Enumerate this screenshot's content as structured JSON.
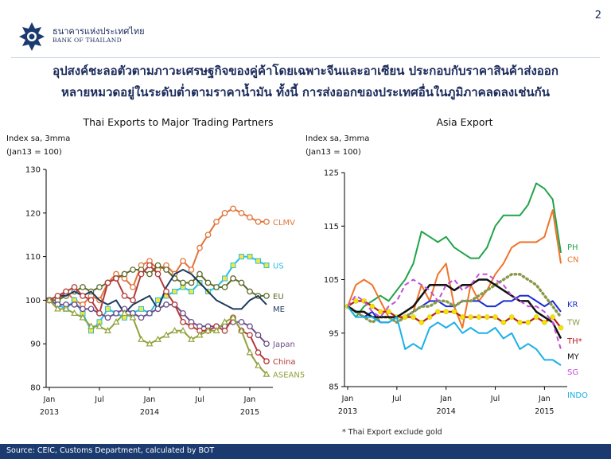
{
  "header": {
    "bank_name_th": "ธนาคารแห่งประเทศไทย",
    "bank_name_en": "BANK OF THAILAND",
    "page_number": "2",
    "headline_line1": "อุปสงค์ชะลอตัวตามภาวะเศรษฐกิจของคู่ค้าโดยเฉพาะจีนและอาเซียน ประกอบกับราคาสินค้าส่งออก",
    "headline_line2": "หลายหมวดอยู่ในระดับต่ำตามราคาน้ำมัน ทั้งนี้ การส่งออกของประเทศอื่นในภูมิภาคลดลงเช่นกัน"
  },
  "footnote": "* Thai Export exclude gold",
  "source": "Source: CEIC, Customs Department, calculated by BOT",
  "colors": {
    "accent": "#1b3a6f"
  },
  "chart_data": [
    {
      "type": "line",
      "title": "Thai Exports to Major Trading Partners",
      "ylabel_line1": "Index sa, 3mma",
      "ylabel_line2": "(Jan13 = 100)",
      "ylim": [
        80,
        130
      ],
      "yticks": [
        80,
        90,
        100,
        110,
        120,
        130
      ],
      "x_ticks": [
        {
          "label": "Jan",
          "sub": "2013",
          "index": 0
        },
        {
          "label": "Jul",
          "sub": "",
          "index": 6
        },
        {
          "label": "Jan",
          "sub": "2014",
          "index": 12
        },
        {
          "label": "Jul",
          "sub": "",
          "index": 18
        },
        {
          "label": "Jan",
          "sub": "2015",
          "index": 24
        }
      ],
      "n_points": 27,
      "grid": false,
      "legend": "line-end labels",
      "series": [
        {
          "name": "CLMV",
          "color": "#e2743a",
          "marker": "circle-hollow",
          "values": [
            100,
            100,
            102,
            100,
            99,
            101,
            100,
            104,
            106,
            105,
            103,
            108,
            109,
            107,
            108,
            106,
            109,
            107,
            112,
            115,
            118,
            120,
            121,
            120,
            119,
            118,
            118
          ]
        },
        {
          "name": "US",
          "color": "#2bbce6",
          "marker": "square-yellow",
          "values": [
            100,
            99,
            98,
            100,
            97,
            93,
            95,
            98,
            97,
            96,
            97,
            98,
            97,
            100,
            101,
            102,
            103,
            102,
            104,
            102,
            103,
            105,
            108,
            110,
            110,
            109,
            108
          ]
        },
        {
          "name": "EU",
          "color": "#5d6a2a",
          "marker": "circle-hollow",
          "values": [
            100,
            100,
            101,
            102,
            103,
            102,
            103,
            104,
            105,
            106,
            107,
            107,
            106,
            108,
            107,
            105,
            104,
            104,
            106,
            104,
            103,
            103,
            105,
            104,
            102,
            101,
            101
          ]
        },
        {
          "name": "ME",
          "color": "#1e3a5c",
          "marker": "none",
          "values": [
            100,
            101,
            101,
            102,
            101,
            102,
            100,
            99,
            100,
            97,
            99,
            100,
            101,
            98,
            103,
            106,
            107,
            106,
            104,
            102,
            100,
            99,
            98,
            98,
            100,
            101,
            99
          ]
        },
        {
          "name": "Japan",
          "color": "#6c4f8a",
          "marker": "circle-hollow",
          "values": [
            100,
            99,
            99,
            99,
            98,
            98,
            97,
            96,
            97,
            98,
            97,
            96,
            97,
            98,
            99,
            99,
            97,
            95,
            94,
            94,
            94,
            94,
            95,
            95,
            94,
            92,
            90
          ]
        },
        {
          "name": "China",
          "color": "#b23a3a",
          "marker": "circle-hollow",
          "values": [
            100,
            101,
            102,
            103,
            101,
            100,
            97,
            104,
            105,
            101,
            100,
            106,
            108,
            106,
            102,
            99,
            95,
            94,
            93,
            93,
            94,
            93,
            96,
            93,
            92,
            88,
            86
          ]
        },
        {
          "name": "ASEAN5",
          "color": "#8fa23a",
          "marker": "triangle-hollow",
          "values": [
            100,
            98,
            98,
            97,
            96,
            94,
            94,
            93,
            95,
            97,
            96,
            91,
            90,
            91,
            92,
            93,
            93,
            91,
            92,
            93,
            93,
            95,
            96,
            93,
            88,
            85,
            83
          ]
        }
      ]
    },
    {
      "type": "line",
      "title": "Asia Export",
      "ylabel_line1": "Index sa, 3mma",
      "ylabel_line2": "(Jan13 = 100)",
      "ylim": [
        85,
        125
      ],
      "yticks": [
        85,
        95,
        105,
        115,
        125
      ],
      "x_ticks": [
        {
          "label": "Jan",
          "sub": "2013",
          "index": 0
        },
        {
          "label": "Jul",
          "sub": "",
          "index": 6
        },
        {
          "label": "Jan",
          "sub": "2014",
          "index": 12
        },
        {
          "label": "Jul",
          "sub": "",
          "index": 18
        },
        {
          "label": "Jan",
          "sub": "2015",
          "index": 24
        }
      ],
      "n_points": 27,
      "grid": false,
      "legend": "line-end labels",
      "series": [
        {
          "name": "PH",
          "color": "#22a34a",
          "style": "solid",
          "values": [
            100,
            98,
            100,
            101,
            102,
            101,
            103,
            105,
            108,
            114,
            113,
            112,
            113,
            111,
            110,
            109,
            109,
            111,
            115,
            117,
            117,
            117,
            119,
            123,
            122,
            120,
            110
          ]
        },
        {
          "name": "CN",
          "color": "#f0742a",
          "style": "solid",
          "values": [
            100,
            104,
            105,
            104,
            101,
            98,
            97,
            98,
            99,
            104,
            101,
            106,
            108,
            100,
            96,
            104,
            101,
            103,
            106,
            108,
            111,
            112,
            112,
            112,
            113,
            118,
            108
          ]
        },
        {
          "name": "KR",
          "color": "#1a2dd4",
          "style": "solid",
          "values": [
            100,
            99,
            98,
            99,
            97,
            97,
            98,
            98,
            99,
            100,
            101,
            101,
            100,
            100,
            101,
            101,
            101,
            100,
            100,
            101,
            101,
            102,
            102,
            101,
            100,
            101,
            99
          ]
        },
        {
          "name": "TW",
          "color": "#8a9a4a",
          "style": "dotted",
          "values": [
            100,
            99,
            98,
            97,
            98,
            98,
            97,
            98,
            99,
            100,
            100,
            101,
            101,
            100,
            101,
            101,
            102,
            103,
            104,
            105,
            106,
            106,
            105,
            104,
            102,
            100,
            98
          ]
        },
        {
          "name": "TH*",
          "color": "#b81d1d",
          "style": "solid-yellow-dots",
          "values": [
            100,
            101,
            101,
            100,
            99,
            99,
            98,
            98,
            98,
            97,
            98,
            99,
            99,
            99,
            98,
            98,
            98,
            98,
            98,
            97,
            98,
            97,
            97,
            98,
            97,
            98,
            96
          ]
        },
        {
          "name": "MY",
          "color": "#111111",
          "style": "solid",
          "values": [
            100,
            99,
            99,
            98,
            98,
            98,
            98,
            99,
            100,
            102,
            104,
            104,
            104,
            103,
            104,
            104,
            105,
            105,
            104,
            103,
            102,
            101,
            101,
            99,
            98,
            97,
            94
          ]
        },
        {
          "name": "SG",
          "color": "#c050d6",
          "style": "dashed",
          "values": [
            100,
            102,
            101,
            99,
            98,
            100,
            101,
            104,
            105,
            104,
            103,
            101,
            104,
            105,
            103,
            104,
            106,
            106,
            105,
            104,
            102,
            101,
            100,
            100,
            99,
            97,
            92
          ]
        },
        {
          "name": "INDO",
          "color": "#1ab0e8",
          "style": "solid",
          "values": [
            100,
            98,
            98,
            98,
            97,
            97,
            98,
            92,
            93,
            92,
            96,
            97,
            96,
            97,
            95,
            96,
            95,
            95,
            96,
            94,
            95,
            92,
            93,
            92,
            90,
            90,
            89
          ]
        }
      ]
    }
  ]
}
